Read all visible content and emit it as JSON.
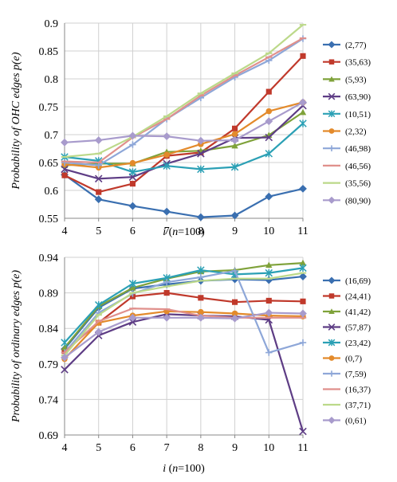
{
  "chart_data": [
    {
      "type": "line",
      "ylabel": "Probability of OHC edges p(e)",
      "xlabel": "i (n=100)",
      "xlabel_italic": "i",
      "xlabel_rest": " (n=100)",
      "x": [
        4,
        5,
        6,
        7,
        8,
        9,
        10,
        11
      ],
      "ylim": [
        0.55,
        0.9
      ],
      "yticks": [
        "0.55",
        "0.6",
        "0.65",
        "0.7",
        "0.75",
        "0.8",
        "0.85",
        "0.9"
      ],
      "grid": true,
      "legend_position": "right",
      "series": [
        {
          "name": "(2,77)",
          "color": "#3a6fb0",
          "marker": "diamond",
          "values": [
            0.628,
            0.584,
            0.572,
            0.562,
            0.552,
            0.555,
            0.589,
            0.603
          ]
        },
        {
          "name": "(35,63)",
          "color": "#c0392b",
          "marker": "square",
          "values": [
            0.627,
            0.597,
            0.612,
            0.662,
            0.668,
            0.711,
            0.777,
            0.841
          ]
        },
        {
          "name": "(5,93)",
          "color": "#7fa23a",
          "marker": "triangle",
          "values": [
            0.645,
            0.648,
            0.648,
            0.669,
            0.671,
            0.68,
            0.699,
            0.74
          ]
        },
        {
          "name": "(63,90)",
          "color": "#5e3d85",
          "marker": "x",
          "values": [
            0.638,
            0.621,
            0.624,
            0.648,
            0.666,
            0.694,
            0.695,
            0.752
          ]
        },
        {
          "name": "(10,51)",
          "color": "#2ba0b5",
          "marker": "star",
          "values": [
            0.66,
            0.653,
            0.633,
            0.644,
            0.638,
            0.642,
            0.666,
            0.72
          ]
        },
        {
          "name": "(2,32)",
          "color": "#e38a2b",
          "marker": "circle",
          "values": [
            0.647,
            0.641,
            0.649,
            0.664,
            0.683,
            0.701,
            0.742,
            0.758
          ]
        },
        {
          "name": "(46,98)",
          "color": "#8ea7d8",
          "marker": "plus",
          "values": [
            0.65,
            0.645,
            0.682,
            0.728,
            0.766,
            0.803,
            0.833,
            0.872
          ]
        },
        {
          "name": "(46,56)",
          "color": "#e0908c",
          "marker": "dash",
          "values": [
            0.652,
            0.65,
            0.695,
            0.728,
            0.77,
            0.806,
            0.839,
            0.873
          ]
        },
        {
          "name": "(35,56)",
          "color": "#bcd98a",
          "marker": "dash",
          "values": [
            0.66,
            0.666,
            0.696,
            0.733,
            0.774,
            0.81,
            0.846,
            0.897
          ]
        },
        {
          "name": "(80,90)",
          "color": "#a89bcc",
          "marker": "diamond",
          "values": [
            0.686,
            0.69,
            0.698,
            0.697,
            0.689,
            0.69,
            0.724,
            0.758
          ]
        }
      ]
    },
    {
      "type": "line",
      "ylabel": "Probability of ordinary edges p(e)",
      "xlabel": "i (n=100)",
      "xlabel_italic": "i",
      "xlabel_rest": " (n=100)",
      "x": [
        4,
        5,
        6,
        7,
        8,
        9,
        10,
        11
      ],
      "ylim": [
        0.69,
        0.94
      ],
      "yticks": [
        "0.69",
        "0.74",
        "0.79",
        "0.84",
        "0.89",
        "0.94"
      ],
      "grid": true,
      "legend_position": "right",
      "series": [
        {
          "name": "(16,69)",
          "color": "#3a6fb0",
          "marker": "diamond",
          "values": [
            0.811,
            0.869,
            0.896,
            0.902,
            0.907,
            0.909,
            0.908,
            0.913
          ]
        },
        {
          "name": "(24,41)",
          "color": "#c0392b",
          "marker": "square",
          "values": [
            0.808,
            0.848,
            0.885,
            0.89,
            0.883,
            0.877,
            0.879,
            0.878
          ]
        },
        {
          "name": "(41,42)",
          "color": "#7fa23a",
          "marker": "triangle",
          "values": [
            0.813,
            0.871,
            0.897,
            0.91,
            0.92,
            0.922,
            0.929,
            0.932
          ]
        },
        {
          "name": "(57,87)",
          "color": "#5e3d85",
          "marker": "x",
          "values": [
            0.782,
            0.83,
            0.849,
            0.86,
            0.858,
            0.857,
            0.852,
            0.695
          ]
        },
        {
          "name": "(23,42)",
          "color": "#2ba0b5",
          "marker": "star",
          "values": [
            0.82,
            0.873,
            0.903,
            0.911,
            0.922,
            0.916,
            0.918,
            0.925
          ]
        },
        {
          "name": "(0,7)",
          "color": "#e38a2b",
          "marker": "circle",
          "values": [
            0.797,
            0.848,
            0.858,
            0.864,
            0.863,
            0.861,
            0.858,
            0.857
          ]
        },
        {
          "name": "(7,59)",
          "color": "#8ea7d8",
          "marker": "plus",
          "values": [
            0.806,
            0.862,
            0.889,
            0.905,
            0.912,
            0.921,
            0.806,
            0.82
          ]
        },
        {
          "name": "(16,37)",
          "color": "#e0908c",
          "marker": "dash",
          "values": [
            0.806,
            0.85,
            0.868,
            0.867,
            0.858,
            0.855,
            0.855,
            0.855
          ]
        },
        {
          "name": "(37,71)",
          "color": "#bcd98a",
          "marker": "dash",
          "values": [
            0.802,
            0.859,
            0.89,
            0.899,
            0.907,
            0.91,
            0.91,
            0.918
          ]
        },
        {
          "name": "(0,61)",
          "color": "#a89bcc",
          "marker": "diamond",
          "values": [
            0.799,
            0.835,
            0.855,
            0.855,
            0.855,
            0.854,
            0.862,
            0.861
          ]
        }
      ]
    }
  ]
}
